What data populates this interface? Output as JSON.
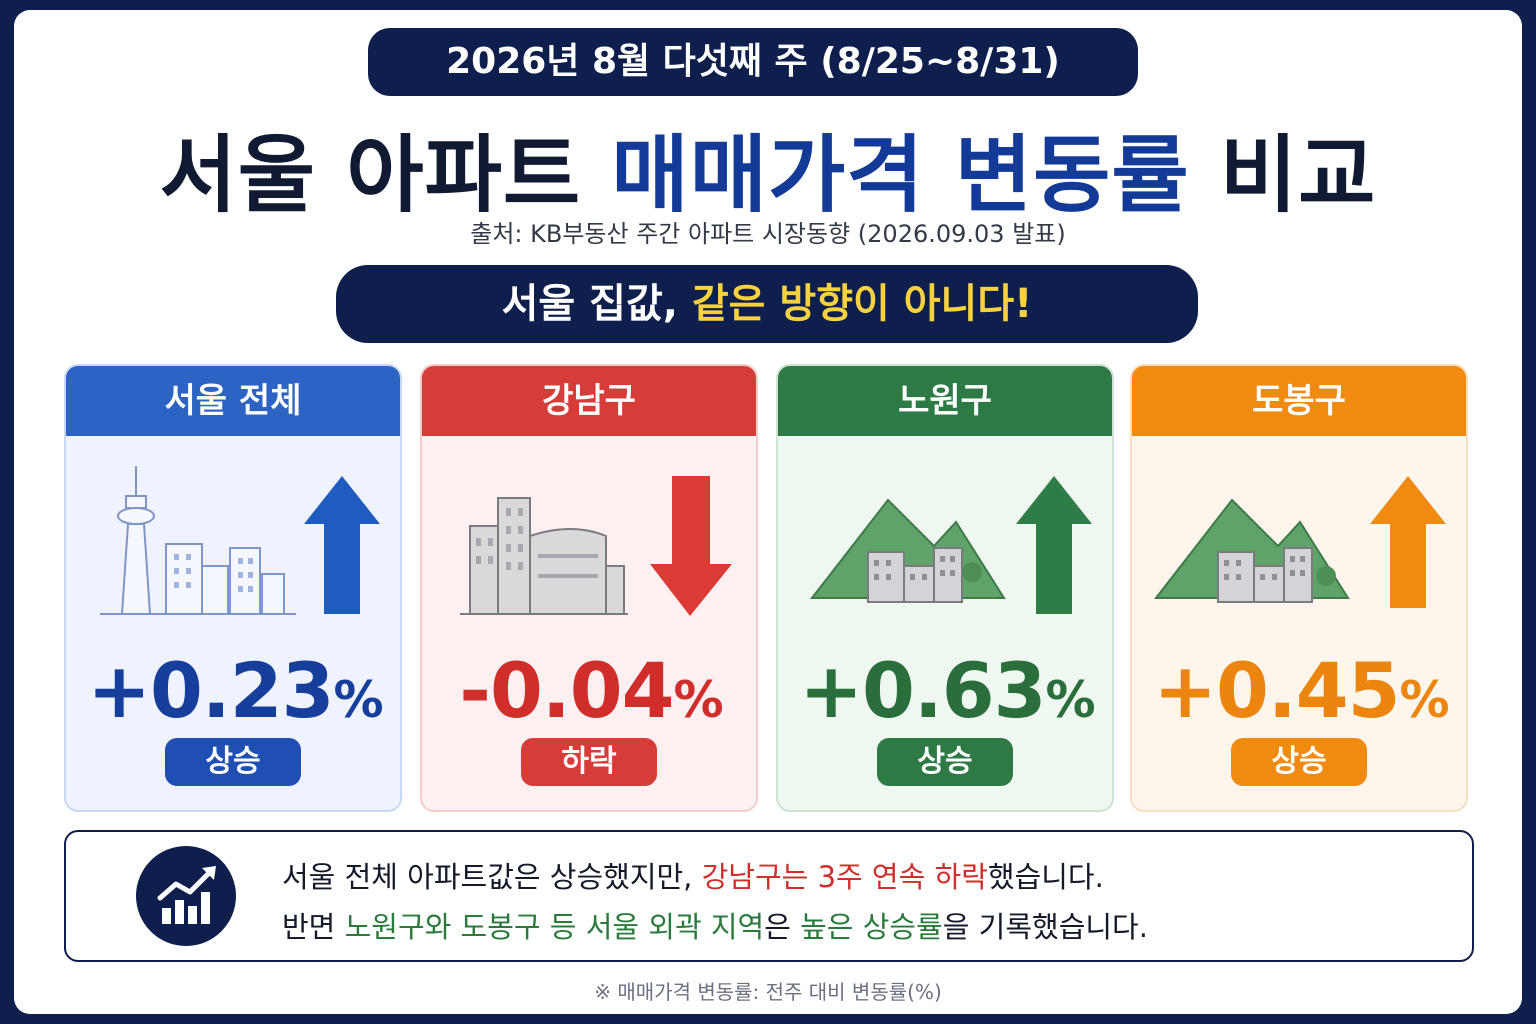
{
  "header": {
    "date_range": "2026년 8월 다섯째 주 (8/25~8/31)",
    "title_part1": "서울 아파트 ",
    "title_highlight": "매매가격 변동률",
    "title_part2": " 비교",
    "source": "출처: KB부동산 주간 아파트 시장동향 (2026.09.03 발표)",
    "headline_part1": "서울 집값, ",
    "headline_highlight": "같은 방향이 아니다!"
  },
  "cards": [
    {
      "region": "서울 전체",
      "value": "+0.23",
      "unit": "%",
      "status": "상승",
      "color": "#2d63c4",
      "icon": "seoul-tower-skyline-icon",
      "arrow": "arrow-up-icon"
    },
    {
      "region": "강남구",
      "value": "-0.04",
      "unit": "%",
      "status": "하락",
      "color": "#d63c38",
      "icon": "gangnam-buildings-icon",
      "arrow": "arrow-down-icon"
    },
    {
      "region": "노원구",
      "value": "+0.63",
      "unit": "%",
      "status": "상승",
      "color": "#2e7a45",
      "icon": "mountain-apartments-icon",
      "arrow": "arrow-up-icon"
    },
    {
      "region": "도봉구",
      "value": "+0.45",
      "unit": "%",
      "status": "상승",
      "color": "#f08a10",
      "icon": "mountain-apartments-icon",
      "arrow": "arrow-up-icon"
    }
  ],
  "summary": {
    "icon": "growth-chart-icon",
    "line1_a": "서울 전체 아파트값은 상승했지만, ",
    "line1_red": "강남구는 3주 연속 하락",
    "line1_b": "했습니다.",
    "line2_a": "반면 ",
    "line2_green1": "노원구와 도봉구 등 서울 외곽 지역",
    "line2_b": "은 ",
    "line2_green2": "높은 상승률",
    "line2_c": "을 기록했습니다."
  },
  "footnote": "※ 매매가격 변동률: 전주 대비 변동률(%)"
}
